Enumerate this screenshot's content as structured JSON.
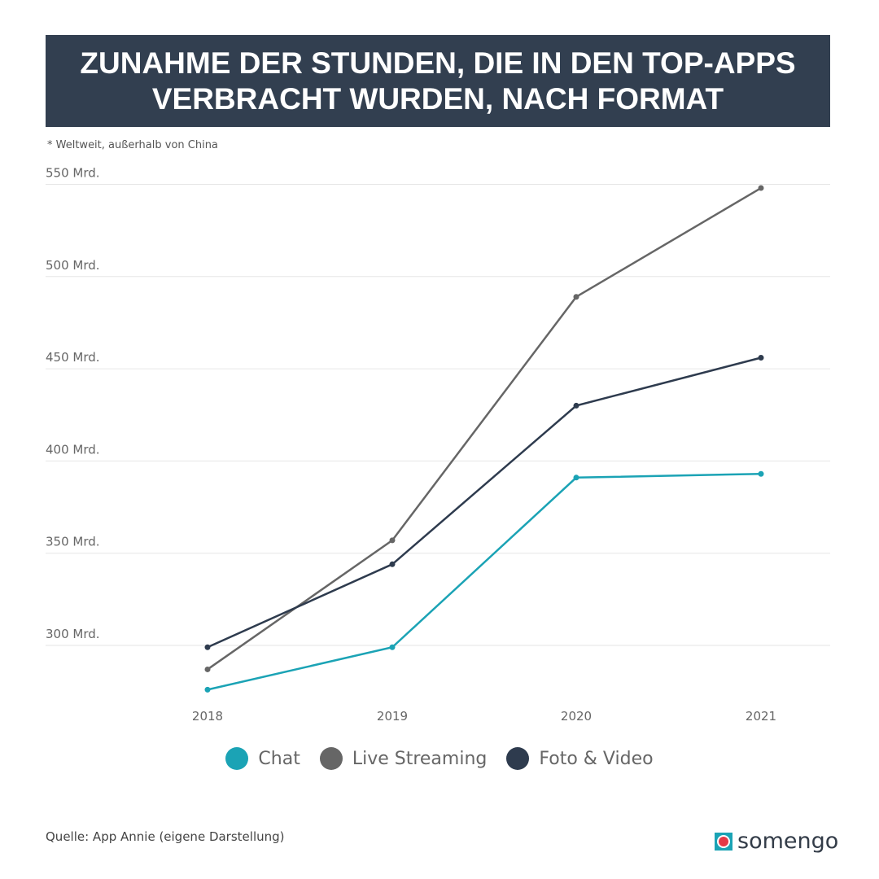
{
  "title_line1": "ZUNAHME DER STUNDEN, DIE IN DEN TOP-APPS",
  "title_line2": "VERBRACHT WURDEN, NACH FORMAT",
  "note": "* Weltweit, außerhalb von China",
  "source": "Quelle: App Annie (eigene Darstellung)",
  "logo": "somengo",
  "chart_data": {
    "type": "line",
    "x": [
      "2018",
      "2019",
      "2020",
      "2021"
    ],
    "ylim": [
      270,
      555
    ],
    "yticks": [
      300,
      350,
      400,
      450,
      500,
      550
    ],
    "ytick_labels": [
      "300 Mrd.",
      "350 Mrd.",
      "400 Mrd.",
      "450 Mrd.",
      "500 Mrd.",
      "550 Mrd."
    ],
    "grid": true,
    "legend_position": "bottom",
    "series": [
      {
        "name": "Chat",
        "color": "#1ba3b5",
        "values": [
          276,
          299,
          391,
          393
        ]
      },
      {
        "name": "Live Streaming",
        "color": "#666666",
        "values": [
          287,
          357,
          489,
          548
        ]
      },
      {
        "name": "Foto & Video",
        "color": "#2e3b4e",
        "values": [
          299,
          344,
          430,
          456
        ]
      }
    ]
  }
}
